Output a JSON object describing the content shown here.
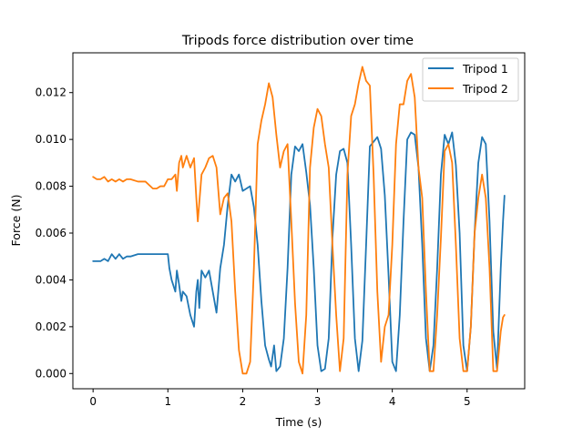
{
  "chart_data": {
    "type": "line",
    "title": "Tripods force distribution over time",
    "xlabel": "Time (s)",
    "ylabel": "Force (N)",
    "xlim": [
      -0.27,
      5.77
    ],
    "ylim": [
      -0.00065,
      0.0137
    ],
    "xticks": [
      0,
      1,
      2,
      3,
      4,
      5
    ],
    "xtick_labels": [
      "0",
      "1",
      "2",
      "3",
      "4",
      "5"
    ],
    "yticks": [
      0.0,
      0.002,
      0.004,
      0.006,
      0.008,
      0.01,
      0.012
    ],
    "ytick_labels": [
      "0.000",
      "0.002",
      "0.004",
      "0.006",
      "0.008",
      "0.010",
      "0.012"
    ],
    "grid": false,
    "legend_position": "top-right",
    "series": [
      {
        "name": "Tripod 1",
        "color": "#1f77b4",
        "x": [
          0.0,
          0.1,
          0.15,
          0.2,
          0.25,
          0.3,
          0.35,
          0.4,
          0.45,
          0.5,
          0.6,
          0.7,
          0.8,
          0.9,
          1.0,
          1.02,
          1.05,
          1.1,
          1.12,
          1.15,
          1.18,
          1.2,
          1.25,
          1.3,
          1.35,
          1.38,
          1.4,
          1.42,
          1.45,
          1.5,
          1.55,
          1.6,
          1.65,
          1.7,
          1.75,
          1.8,
          1.85,
          1.9,
          1.95,
          2.0,
          2.05,
          2.1,
          2.15,
          2.2,
          2.25,
          2.3,
          2.35,
          2.38,
          2.42,
          2.45,
          2.5,
          2.55,
          2.6,
          2.65,
          2.7,
          2.75,
          2.8,
          2.85,
          2.9,
          2.95,
          3.0,
          3.05,
          3.1,
          3.15,
          3.2,
          3.25,
          3.3,
          3.35,
          3.4,
          3.45,
          3.5,
          3.55,
          3.6,
          3.65,
          3.7,
          3.75,
          3.8,
          3.85,
          3.9,
          3.95,
          4.0,
          4.05,
          4.1,
          4.15,
          4.2,
          4.25,
          4.3,
          4.35,
          4.4,
          4.45,
          4.5,
          4.55,
          4.6,
          4.65,
          4.7,
          4.75,
          4.8,
          4.85,
          4.9,
          4.95,
          5.0,
          5.05,
          5.1,
          5.15,
          5.2,
          5.25,
          5.3,
          5.35,
          5.4,
          5.45,
          5.48,
          5.5
        ],
        "values": [
          0.0048,
          0.0048,
          0.0049,
          0.0048,
          0.0051,
          0.0049,
          0.0051,
          0.0049,
          0.005,
          0.005,
          0.0051,
          0.0051,
          0.0051,
          0.0051,
          0.0051,
          0.0045,
          0.004,
          0.0035,
          0.0044,
          0.0038,
          0.0031,
          0.0035,
          0.0033,
          0.0025,
          0.002,
          0.0035,
          0.004,
          0.0028,
          0.0044,
          0.0041,
          0.0044,
          0.0035,
          0.0026,
          0.0045,
          0.0055,
          0.0072,
          0.0085,
          0.0082,
          0.0085,
          0.0078,
          0.0079,
          0.008,
          0.0071,
          0.0055,
          0.0031,
          0.0012,
          0.0006,
          0.0003,
          0.0012,
          0.0001,
          0.0003,
          0.0015,
          0.0045,
          0.0085,
          0.0097,
          0.0095,
          0.0098,
          0.0086,
          0.0072,
          0.0045,
          0.0012,
          0.0001,
          0.0002,
          0.0015,
          0.0058,
          0.0085,
          0.0095,
          0.0096,
          0.009,
          0.0055,
          0.0015,
          0.0001,
          0.0014,
          0.0055,
          0.0097,
          0.0099,
          0.0101,
          0.0096,
          0.0076,
          0.0042,
          0.0005,
          0.0001,
          0.0025,
          0.0065,
          0.01,
          0.0103,
          0.0102,
          0.0088,
          0.0055,
          0.0015,
          0.0001,
          0.0012,
          0.0045,
          0.0085,
          0.0102,
          0.0098,
          0.0103,
          0.0089,
          0.006,
          0.0012,
          0.0001,
          0.002,
          0.006,
          0.009,
          0.0101,
          0.0098,
          0.0065,
          0.0018,
          0.0002,
          0.0045,
          0.0065,
          0.0076
        ]
      },
      {
        "name": "Tripod 2",
        "color": "#ff7f0e",
        "x": [
          0.0,
          0.05,
          0.1,
          0.15,
          0.2,
          0.25,
          0.3,
          0.35,
          0.4,
          0.45,
          0.5,
          0.6,
          0.7,
          0.8,
          0.85,
          0.9,
          0.95,
          1.0,
          1.05,
          1.1,
          1.12,
          1.15,
          1.18,
          1.2,
          1.25,
          1.3,
          1.35,
          1.38,
          1.4,
          1.45,
          1.5,
          1.55,
          1.6,
          1.65,
          1.7,
          1.75,
          1.8,
          1.85,
          1.9,
          1.95,
          2.0,
          2.05,
          2.1,
          2.15,
          2.2,
          2.25,
          2.3,
          2.35,
          2.4,
          2.45,
          2.5,
          2.55,
          2.6,
          2.65,
          2.7,
          2.75,
          2.8,
          2.85,
          2.9,
          2.95,
          3.0,
          3.05,
          3.1,
          3.15,
          3.2,
          3.25,
          3.3,
          3.35,
          3.4,
          3.45,
          3.5,
          3.55,
          3.6,
          3.65,
          3.7,
          3.75,
          3.8,
          3.85,
          3.9,
          3.95,
          4.0,
          4.05,
          4.1,
          4.15,
          4.2,
          4.25,
          4.3,
          4.35,
          4.4,
          4.45,
          4.5,
          4.55,
          4.6,
          4.65,
          4.7,
          4.75,
          4.8,
          4.85,
          4.9,
          4.95,
          5.0,
          5.05,
          5.1,
          5.15,
          5.2,
          5.25,
          5.3,
          5.35,
          5.4,
          5.45,
          5.48,
          5.5
        ],
        "values": [
          0.0084,
          0.0083,
          0.0083,
          0.0084,
          0.0082,
          0.0083,
          0.0082,
          0.0083,
          0.0082,
          0.0083,
          0.0083,
          0.0082,
          0.0082,
          0.0079,
          0.0079,
          0.008,
          0.008,
          0.0083,
          0.0083,
          0.0085,
          0.0078,
          0.009,
          0.0093,
          0.0088,
          0.0093,
          0.0088,
          0.0092,
          0.0075,
          0.0065,
          0.0085,
          0.0088,
          0.0092,
          0.0093,
          0.0088,
          0.0068,
          0.0075,
          0.0077,
          0.0065,
          0.0035,
          0.001,
          0.0,
          0.0,
          0.0005,
          0.0045,
          0.0098,
          0.0108,
          0.0115,
          0.0124,
          0.0118,
          0.0102,
          0.0088,
          0.0095,
          0.0098,
          0.0065,
          0.003,
          0.0005,
          0.0,
          0.0025,
          0.0088,
          0.0105,
          0.0113,
          0.011,
          0.0098,
          0.0088,
          0.0055,
          0.0025,
          0.0001,
          0.0015,
          0.0085,
          0.011,
          0.0115,
          0.0124,
          0.0131,
          0.0125,
          0.0123,
          0.0085,
          0.0035,
          0.0005,
          0.002,
          0.0025,
          0.0055,
          0.0098,
          0.0115,
          0.0115,
          0.0125,
          0.0128,
          0.0118,
          0.0088,
          0.0075,
          0.0035,
          0.0001,
          0.0001,
          0.0025,
          0.0058,
          0.0095,
          0.0098,
          0.009,
          0.0055,
          0.0015,
          0.0001,
          0.0001,
          0.002,
          0.006,
          0.0075,
          0.0085,
          0.0075,
          0.0045,
          0.0001,
          0.0001,
          0.0018,
          0.0024,
          0.0025
        ]
      }
    ]
  }
}
